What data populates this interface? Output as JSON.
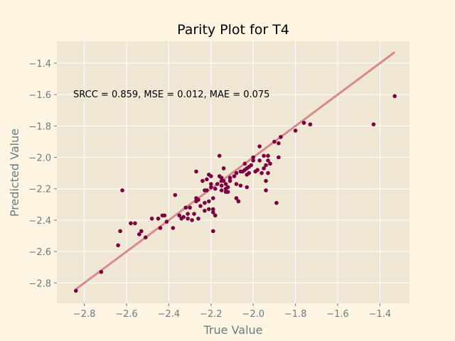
{
  "chart_data": {
    "type": "scatter",
    "title": "Parity Plot for T4",
    "xlabel": "True Value",
    "ylabel": "Predicted Value",
    "xlim": [
      -2.93,
      -1.26
    ],
    "ylim": [
      -2.93,
      -1.26
    ],
    "xticks": [
      -2.8,
      -2.6,
      -2.4,
      -2.2,
      -2.0,
      -1.8,
      -1.6,
      -1.4
    ],
    "yticks": [
      -2.8,
      -2.6,
      -2.4,
      -2.2,
      -2.0,
      -1.8,
      -1.6,
      -1.4
    ],
    "grid": true,
    "annotation": "SRCC = 0.859, MSE = 0.012, MAE = 0.075",
    "colors": {
      "points": "#7b0040",
      "fit_line": "#d68a8f",
      "plot_background": "#efe6d3",
      "figure_background": "#fdf5e2",
      "grid": "#ffffff",
      "axis_text": "#6b7a87"
    },
    "fit_line": {
      "x": [
        -2.84,
        -1.33
      ],
      "y": [
        -2.84,
        -1.33
      ]
    },
    "points": [
      [
        -2.84,
        -2.85
      ],
      [
        -2.72,
        -2.73
      ],
      [
        -2.64,
        -2.56
      ],
      [
        -2.63,
        -2.47
      ],
      [
        -2.62,
        -2.21
      ],
      [
        -2.58,
        -2.42
      ],
      [
        -2.56,
        -2.42
      ],
      [
        -2.54,
        -2.49
      ],
      [
        -2.53,
        -2.47
      ],
      [
        -2.51,
        -2.51
      ],
      [
        -2.48,
        -2.39
      ],
      [
        -2.45,
        -2.39
      ],
      [
        -2.44,
        -2.45
      ],
      [
        -2.43,
        -2.37
      ],
      [
        -2.42,
        -2.37
      ],
      [
        -2.41,
        -2.41
      ],
      [
        -2.38,
        -2.45
      ],
      [
        -2.37,
        -2.24
      ],
      [
        -2.35,
        -2.37
      ],
      [
        -2.34,
        -2.39
      ],
      [
        -2.33,
        -2.38
      ],
      [
        -2.32,
        -2.32
      ],
      [
        -2.31,
        -2.39
      ],
      [
        -2.31,
        -2.36
      ],
      [
        -2.3,
        -2.32
      ],
      [
        -2.29,
        -2.4
      ],
      [
        -2.28,
        -2.36
      ],
      [
        -2.27,
        -2.28
      ],
      [
        -2.27,
        -2.26
      ],
      [
        -2.27,
        -2.09
      ],
      [
        -2.26,
        -2.39
      ],
      [
        -2.26,
        -2.27
      ],
      [
        -2.25,
        -2.31
      ],
      [
        -2.24,
        -2.15
      ],
      [
        -2.23,
        -2.34
      ],
      [
        -2.23,
        -2.29
      ],
      [
        -2.23,
        -2.21
      ],
      [
        -2.22,
        -2.21
      ],
      [
        -2.22,
        -2.14
      ],
      [
        -2.21,
        -2.11
      ],
      [
        -2.21,
        -2.33
      ],
      [
        -2.21,
        -2.28
      ],
      [
        -2.2,
        -2.19
      ],
      [
        -2.2,
        -2.17
      ],
      [
        -2.2,
        -2.12
      ],
      [
        -2.19,
        -2.47
      ],
      [
        -2.19,
        -2.35
      ],
      [
        -2.19,
        -2.33
      ],
      [
        -2.19,
        -2.26
      ],
      [
        -2.18,
        -2.37
      ],
      [
        -2.18,
        -2.2
      ],
      [
        -2.17,
        -2.17
      ],
      [
        -2.16,
        -1.99
      ],
      [
        -2.16,
        -2.12
      ],
      [
        -2.15,
        -2.13
      ],
      [
        -2.15,
        -2.15
      ],
      [
        -2.15,
        -2.18
      ],
      [
        -2.15,
        -2.21
      ],
      [
        -2.14,
        -2.07
      ],
      [
        -2.14,
        -2.15
      ],
      [
        -2.13,
        -2.17
      ],
      [
        -2.13,
        -2.2
      ],
      [
        -2.13,
        -2.22
      ],
      [
        -2.12,
        -2.19
      ],
      [
        -2.12,
        -2.22
      ],
      [
        -2.11,
        -2.13
      ],
      [
        -2.11,
        -2.15
      ],
      [
        -2.09,
        -2.12
      ],
      [
        -2.08,
        -2.26
      ],
      [
        -2.08,
        -2.17
      ],
      [
        -2.08,
        -2.1
      ],
      [
        -2.07,
        -2.28
      ],
      [
        -2.07,
        -2.28
      ],
      [
        -2.06,
        -2.18
      ],
      [
        -2.06,
        -2.09
      ],
      [
        -2.05,
        -2.09
      ],
      [
        -2.04,
        -2.04
      ],
      [
        -2.04,
        -2.08
      ],
      [
        -2.03,
        -2.07
      ],
      [
        -2.03,
        -2.11
      ],
      [
        -2.03,
        -2.19
      ],
      [
        -2.02,
        -2.1
      ],
      [
        -2.02,
        -2.06
      ],
      [
        -2.01,
        -2.05
      ],
      [
        -2.0,
        -2.0
      ],
      [
        -2.0,
        -2.02
      ],
      [
        -1.99,
        -2.09
      ],
      [
        -1.98,
        -2.08
      ],
      [
        -1.97,
        -1.93
      ],
      [
        -1.97,
        -2.02
      ],
      [
        -1.96,
        -2.1
      ],
      [
        -1.95,
        -1.99
      ],
      [
        -1.95,
        -2.07
      ],
      [
        -1.94,
        -2.21
      ],
      [
        -1.94,
        -2.15
      ],
      [
        -1.94,
        -2.05
      ],
      [
        -1.93,
        -1.99
      ],
      [
        -1.93,
        -2.02
      ],
      [
        -1.93,
        -2.1
      ],
      [
        -1.92,
        -2.04
      ],
      [
        -1.9,
        -1.9
      ],
      [
        -1.89,
        -2.29
      ],
      [
        -1.88,
        -1.91
      ],
      [
        -1.88,
        -2.0
      ],
      [
        -1.87,
        -1.87
      ],
      [
        -1.8,
        -1.83
      ],
      [
        -1.76,
        -1.78
      ],
      [
        -1.73,
        -1.79
      ],
      [
        -1.43,
        -1.79
      ],
      [
        -1.33,
        -1.61
      ]
    ]
  }
}
